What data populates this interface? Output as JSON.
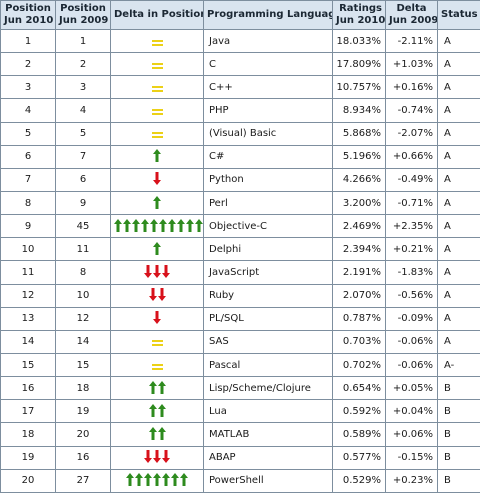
{
  "headers": {
    "pos_2010": "Position Jun 2010",
    "pos_2009": "Position Jun 2009",
    "delta_pos": "Delta in Position",
    "language": "Programming Language",
    "ratings": "Ratings Jun 2010",
    "delta_2009": "Delta Jun 2009",
    "status": "Status"
  },
  "header_lines": {
    "pos_2010": [
      "Position",
      "Jun 2010"
    ],
    "pos_2009": [
      "Position",
      "Jun 2009"
    ],
    "ratings": [
      "Ratings",
      "Jun 2010"
    ],
    "delta_2009": [
      "Delta",
      "Jun 2009"
    ]
  },
  "colors": {
    "up": "#2e8b1e",
    "down": "#d8111b",
    "same": "#ecd117",
    "header_bg": "#d9e4ef",
    "border": "#7d8e9e"
  },
  "rows": [
    {
      "pos2010": "1",
      "pos2009": "1",
      "delta": {
        "dir": "same",
        "count": 1
      },
      "language": "Java",
      "rating": "18.033%",
      "change": "-2.11%",
      "status": "A"
    },
    {
      "pos2010": "2",
      "pos2009": "2",
      "delta": {
        "dir": "same",
        "count": 1
      },
      "language": "C",
      "rating": "17.809%",
      "change": "+1.03%",
      "status": "A"
    },
    {
      "pos2010": "3",
      "pos2009": "3",
      "delta": {
        "dir": "same",
        "count": 1
      },
      "language": "C++",
      "rating": "10.757%",
      "change": "+0.16%",
      "status": "A"
    },
    {
      "pos2010": "4",
      "pos2009": "4",
      "delta": {
        "dir": "same",
        "count": 1
      },
      "language": "PHP",
      "rating": "8.934%",
      "change": "-0.74%",
      "status": "A"
    },
    {
      "pos2010": "5",
      "pos2009": "5",
      "delta": {
        "dir": "same",
        "count": 1
      },
      "language": "(Visual) Basic",
      "rating": "5.868%",
      "change": "-2.07%",
      "status": "A"
    },
    {
      "pos2010": "6",
      "pos2009": "7",
      "delta": {
        "dir": "up",
        "count": 1
      },
      "language": "C#",
      "rating": "5.196%",
      "change": "+0.66%",
      "status": "A"
    },
    {
      "pos2010": "7",
      "pos2009": "6",
      "delta": {
        "dir": "down",
        "count": 1
      },
      "language": "Python",
      "rating": "4.266%",
      "change": "-0.49%",
      "status": "A"
    },
    {
      "pos2010": "8",
      "pos2009": "9",
      "delta": {
        "dir": "up",
        "count": 1
      },
      "language": "Perl",
      "rating": "3.200%",
      "change": "-0.71%",
      "status": "A"
    },
    {
      "pos2010": "9",
      "pos2009": "45",
      "delta": {
        "dir": "up",
        "count": 10
      },
      "language": "Objective-C",
      "rating": "2.469%",
      "change": "+2.35%",
      "status": "A"
    },
    {
      "pos2010": "10",
      "pos2009": "11",
      "delta": {
        "dir": "up",
        "count": 1
      },
      "language": "Delphi",
      "rating": "2.394%",
      "change": "+0.21%",
      "status": "A"
    },
    {
      "pos2010": "11",
      "pos2009": "8",
      "delta": {
        "dir": "down",
        "count": 3
      },
      "language": "JavaScript",
      "rating": "2.191%",
      "change": "-1.83%",
      "status": "A"
    },
    {
      "pos2010": "12",
      "pos2009": "10",
      "delta": {
        "dir": "down",
        "count": 2
      },
      "language": "Ruby",
      "rating": "2.070%",
      "change": "-0.56%",
      "status": "A"
    },
    {
      "pos2010": "13",
      "pos2009": "12",
      "delta": {
        "dir": "down",
        "count": 1
      },
      "language": "PL/SQL",
      "rating": "0.787%",
      "change": "-0.09%",
      "status": "A"
    },
    {
      "pos2010": "14",
      "pos2009": "14",
      "delta": {
        "dir": "same",
        "count": 1
      },
      "language": "SAS",
      "rating": "0.703%",
      "change": "-0.06%",
      "status": "A"
    },
    {
      "pos2010": "15",
      "pos2009": "15",
      "delta": {
        "dir": "same",
        "count": 1
      },
      "language": "Pascal",
      "rating": "0.702%",
      "change": "-0.06%",
      "status": "A-"
    },
    {
      "pos2010": "16",
      "pos2009": "18",
      "delta": {
        "dir": "up",
        "count": 2
      },
      "language": "Lisp/Scheme/Clojure",
      "rating": "0.654%",
      "change": "+0.05%",
      "status": "B"
    },
    {
      "pos2010": "17",
      "pos2009": "19",
      "delta": {
        "dir": "up",
        "count": 2
      },
      "language": "Lua",
      "rating": "0.592%",
      "change": "+0.04%",
      "status": "B"
    },
    {
      "pos2010": "18",
      "pos2009": "20",
      "delta": {
        "dir": "up",
        "count": 2
      },
      "language": "MATLAB",
      "rating": "0.589%",
      "change": "+0.06%",
      "status": "B"
    },
    {
      "pos2010": "19",
      "pos2009": "16",
      "delta": {
        "dir": "down",
        "count": 3
      },
      "language": "ABAP",
      "rating": "0.577%",
      "change": "-0.15%",
      "status": "B"
    },
    {
      "pos2010": "20",
      "pos2009": "27",
      "delta": {
        "dir": "up",
        "count": 7
      },
      "language": "PowerShell",
      "rating": "0.529%",
      "change": "+0.23%",
      "status": "B"
    }
  ]
}
